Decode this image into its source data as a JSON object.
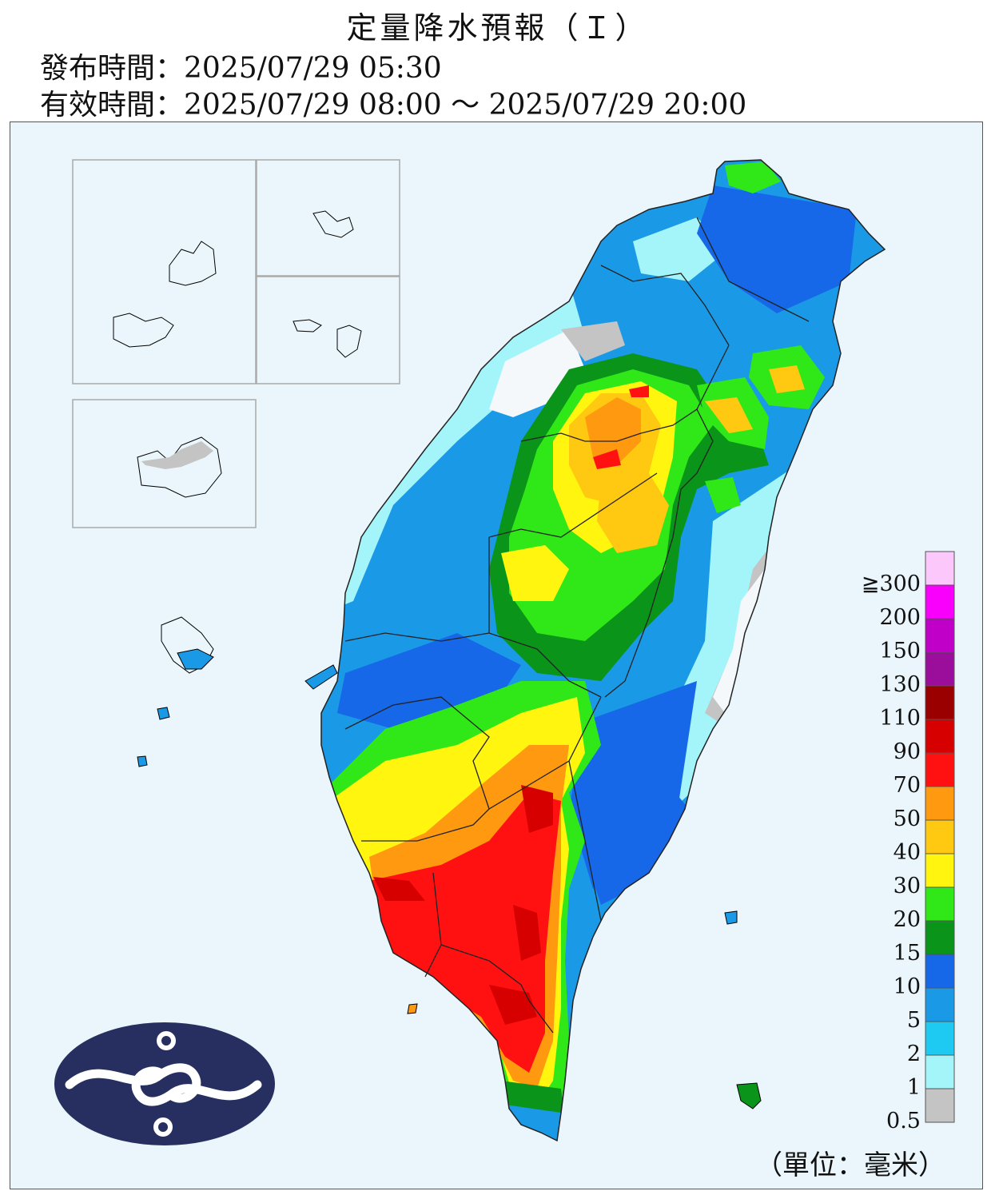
{
  "header": {
    "title": "定量降水預報（Ｉ）",
    "issue_label": "發布時間：",
    "issue_time": "2025/07/29 05:30",
    "valid_label": "有效時間：",
    "valid_time": "2025/07/29 08:00 ～ 2025/07/29 20:00"
  },
  "legend": {
    "unit_text": "（單位：毫米）",
    "bins": [
      {
        "label": "0.5",
        "color": "#c4c4c4"
      },
      {
        "label": "1",
        "color": "#a4f5fa"
      },
      {
        "label": "2",
        "color": "#1ecaf2"
      },
      {
        "label": "5",
        "color": "#1a9ae6"
      },
      {
        "label": "10",
        "color": "#1668e8"
      },
      {
        "label": "15",
        "color": "#0a9419"
      },
      {
        "label": "20",
        "color": "#30e817"
      },
      {
        "label": "30",
        "color": "#fff50f"
      },
      {
        "label": "40",
        "color": "#ffc811"
      },
      {
        "label": "50",
        "color": "#ff9910"
      },
      {
        "label": "70",
        "color": "#ff1111"
      },
      {
        "label": "90",
        "color": "#d70000"
      },
      {
        "label": "110",
        "color": "#9a0000"
      },
      {
        "label": "130",
        "color": "#9b0d9b"
      },
      {
        "label": "150",
        "color": "#c000c8"
      },
      {
        "label": "200",
        "color": "#f800fc"
      },
      {
        "label": "≧300",
        "color": "#fcc8fb"
      }
    ]
  },
  "logo": {
    "name": "cwa-logo",
    "bg": "#262f5f"
  }
}
